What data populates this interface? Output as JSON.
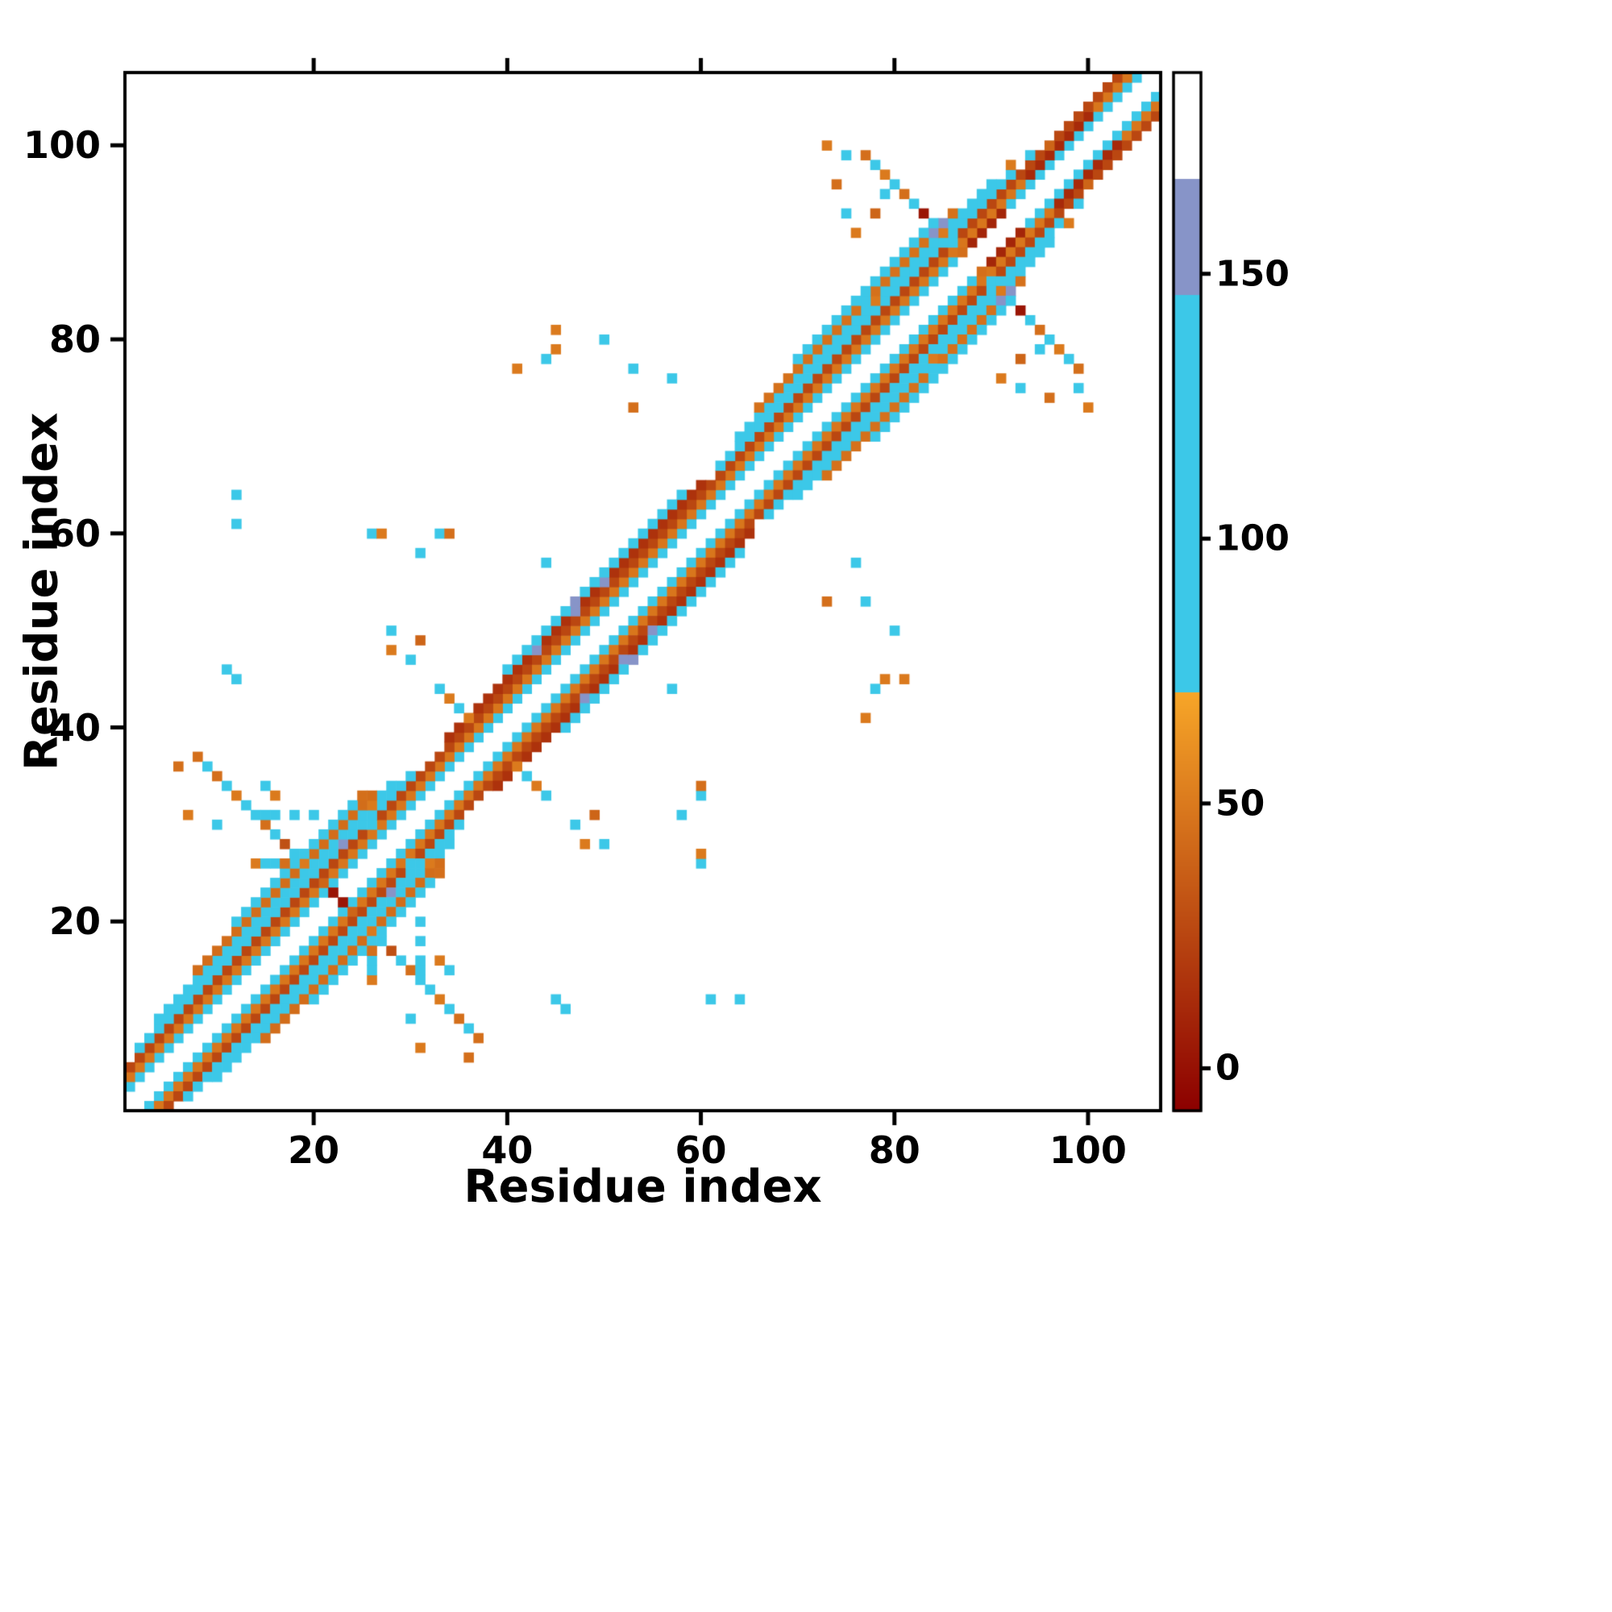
{
  "chart_data": {
    "type": "heatmap",
    "title": "",
    "xlabel": "Residue index",
    "ylabel": "Residue index",
    "x_range": [
      1,
      107
    ],
    "y_range": [
      1,
      107
    ],
    "x_ticks": [
      20,
      40,
      60,
      80,
      100
    ],
    "y_ticks": [
      20,
      40,
      60,
      80,
      100
    ],
    "grid": false,
    "symmetric": true,
    "legend_position": "right-colorbar",
    "colorbar": {
      "ticks": [
        0,
        50,
        100,
        150
      ],
      "vmin": -8,
      "vmax": 188,
      "segments": [
        {
          "from": -8,
          "to": 71,
          "type": "gradient",
          "from_color": "#8c0000",
          "to_color": "#f7a628"
        },
        {
          "from": 71,
          "to": 146,
          "type": "solid",
          "color": "#3cc8e8"
        },
        {
          "from": 146,
          "to": 168,
          "type": "solid",
          "color": "#8794c8"
        },
        {
          "from": 168,
          "to": 188,
          "type": "solid",
          "color": "#ffffff"
        }
      ]
    },
    "diagonal_bands": [
      [
        2,
        1,
        107,
        92
      ],
      [
        3,
        1,
        107,
        48
      ],
      [
        4,
        1,
        107,
        26
      ],
      [
        5,
        2,
        30,
        96
      ],
      [
        5,
        34,
        60,
        16
      ],
      [
        5,
        62,
        92,
        96
      ],
      [
        6,
        4,
        28,
        100
      ],
      [
        6,
        40,
        58,
        92
      ],
      [
        6,
        64,
        90,
        100
      ],
      [
        7,
        8,
        26,
        44
      ],
      [
        7,
        66,
        86,
        46
      ],
      [
        8,
        12,
        24,
        98
      ],
      [
        8,
        70,
        84,
        98
      ],
      [
        2,
        87,
        91,
        10
      ],
      [
        3,
        94,
        100,
        12
      ]
    ],
    "antidiagonal_features": [
      {
        "sum": 45,
        "i_from": 8,
        "i_to": 22,
        "values": [
          50,
          95,
          45,
          95,
          50,
          95,
          95,
          45,
          95,
          30,
          95,
          50,
          95,
          40,
          2
        ]
      },
      {
        "sum": 176,
        "i_from": 77,
        "i_to": 87,
        "values": [
          45,
          95,
          50,
          95,
          45,
          95,
          2,
          95,
          50,
          95,
          45
        ]
      }
    ],
    "points": [
      [
        14,
        26,
        50
      ],
      [
        15,
        26,
        95
      ],
      [
        16,
        26,
        95
      ],
      [
        17,
        26,
        45
      ],
      [
        18,
        26,
        95
      ],
      [
        19,
        26,
        50
      ],
      [
        15,
        31,
        95
      ],
      [
        16,
        31,
        95
      ],
      [
        18,
        31,
        95
      ],
      [
        20,
        31,
        90
      ],
      [
        26,
        30,
        95
      ],
      [
        26,
        32,
        50
      ],
      [
        25,
        33,
        45
      ],
      [
        27,
        33,
        95
      ],
      [
        15,
        34,
        95
      ],
      [
        16,
        33,
        50
      ],
      [
        8,
        37,
        45
      ],
      [
        6,
        36,
        45
      ],
      [
        7,
        31,
        50
      ],
      [
        10,
        30,
        95
      ],
      [
        11,
        46,
        95
      ],
      [
        12,
        45,
        90
      ],
      [
        12,
        61,
        90
      ],
      [
        12,
        64,
        90
      ],
      [
        28,
        48,
        50
      ],
      [
        30,
        47,
        95
      ],
      [
        31,
        49,
        40
      ],
      [
        28,
        50,
        95
      ],
      [
        33,
        44,
        95
      ],
      [
        34,
        43,
        50
      ],
      [
        35,
        42,
        95
      ],
      [
        36,
        41,
        50
      ],
      [
        33,
        60,
        90
      ],
      [
        34,
        60,
        45
      ],
      [
        26,
        60,
        95
      ],
      [
        27,
        60,
        50
      ],
      [
        44,
        57,
        95
      ],
      [
        31,
        58,
        90
      ],
      [
        47,
        53,
        155
      ],
      [
        47,
        52,
        150
      ],
      [
        50,
        55,
        155
      ],
      [
        43,
        48,
        150
      ],
      [
        23,
        28,
        150
      ],
      [
        41,
        77,
        50
      ],
      [
        44,
        78,
        95
      ],
      [
        45,
        81,
        50
      ],
      [
        50,
        80,
        90
      ],
      [
        53,
        77,
        95
      ],
      [
        53,
        73,
        45
      ],
      [
        57,
        76,
        90
      ],
      [
        45,
        79,
        50
      ],
      [
        73,
        100,
        50
      ],
      [
        74,
        96,
        45
      ],
      [
        75,
        99,
        90
      ],
      [
        75,
        93,
        95
      ],
      [
        76,
        91,
        50
      ],
      [
        78,
        93,
        40
      ],
      [
        79,
        95,
        95
      ],
      [
        76,
        84,
        95
      ],
      [
        77,
        84,
        95
      ],
      [
        78,
        84,
        50
      ],
      [
        79,
        84,
        95
      ],
      [
        92,
        98,
        50
      ],
      [
        94,
        99,
        95
      ],
      [
        96,
        100,
        40
      ],
      [
        84,
        91,
        155
      ],
      [
        85,
        92,
        150
      ]
    ]
  }
}
